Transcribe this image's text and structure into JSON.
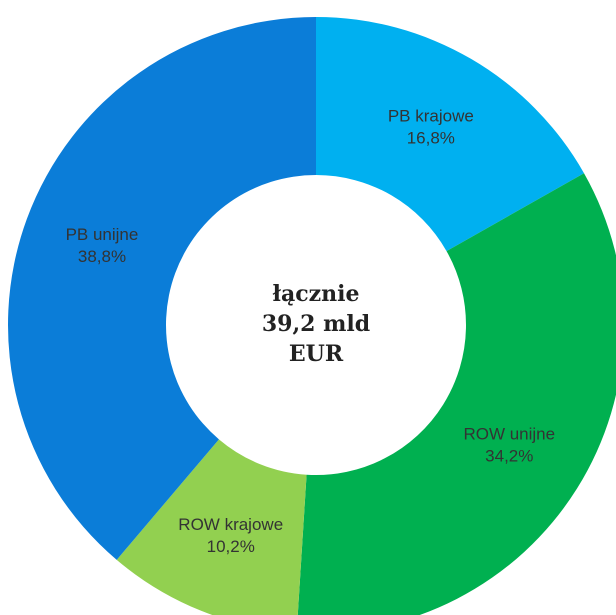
{
  "chart_data": {
    "type": "donut",
    "categories": [
      "PB krajowe",
      "ROW unijne",
      "ROW krajowe",
      "PB unijne"
    ],
    "values": [
      16.8,
      34.2,
      10.2,
      38.8
    ],
    "value_labels": [
      "16,8%",
      "34,2%",
      "10,2%",
      "38,8%"
    ],
    "colors": [
      "#00b0f0",
      "#00b050",
      "#92d050",
      "#0b7dd8"
    ],
    "center_text": [
      "łącznie",
      "39,2 mld",
      "EUR"
    ]
  }
}
